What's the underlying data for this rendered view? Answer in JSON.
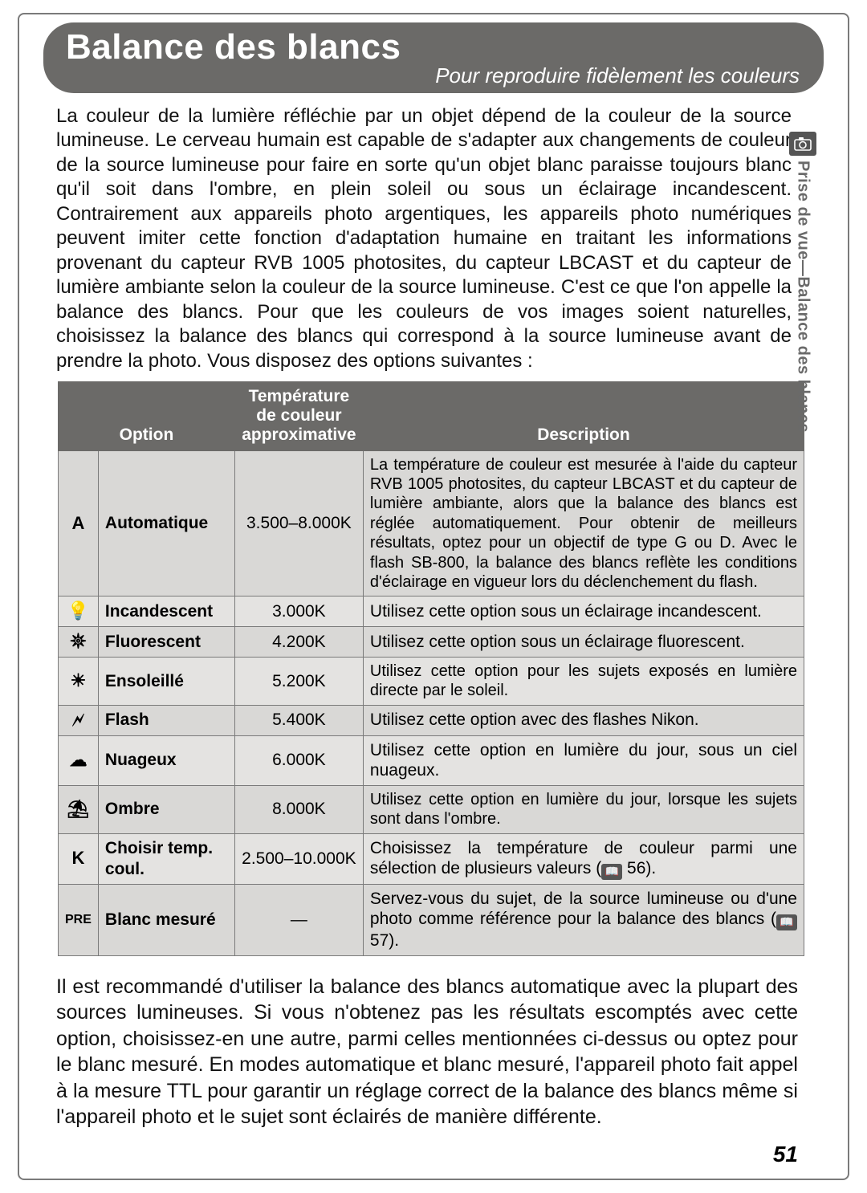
{
  "header": {
    "title": "Balance des blancs",
    "subtitle": "Pour reproduire fidèlement les couleurs"
  },
  "sidebar": {
    "icon_glyph": "📷",
    "label": "Prise de vue—Balance des blancs"
  },
  "intro": "La couleur de la lumière réfléchie par un objet dépend de la couleur de la source lumineuse. Le cerveau humain est capable de s'adapter aux changements de couleur de la source lumineuse pour faire en sorte qu'un objet blanc paraisse toujours blanc qu'il soit dans l'ombre, en plein soleil ou sous un éclairage incandescent. Contrairement aux appareils photo argentiques, les appareils photo numériques peuvent imiter cette fonction d'adaptation humaine en traitant les informations provenant du capteur RVB 1005 photosites, du capteur LBCAST et du capteur de lumière ambiante selon la couleur de la source lumineuse. C'est ce que l'on appelle la balance des blancs. Pour que les couleurs de vos images soient naturelles, choisissez la balance des blancs qui correspond à la source lumineuse avant de prendre la photo. Vous disposez des options suivantes :",
  "table": {
    "headers": {
      "option": "Option",
      "temp": "Température de couleur approximative",
      "desc": "Description"
    },
    "rows": [
      {
        "icon": "A",
        "label": "Automatique",
        "temp": "3.500–8.000K",
        "desc": "La température de couleur est mesurée à l'aide du capteur RVB 1005 photosites, du capteur LBCAST et du capteur de lumière ambiante, alors que la balance des blancs est réglée automatiquement. Pour obtenir de meilleurs résultats, optez pour un objectif de type G ou D. Avec le flash SB-800, la balance des blancs reflète les conditions d'éclairage en vigueur lors du déclenchement du flash.",
        "small": true
      },
      {
        "icon": "💡",
        "label": "Incandescent",
        "temp": "3.000K",
        "desc": "Utilisez cette option sous un éclairage incandescent."
      },
      {
        "icon": "𖤓",
        "label": "Fluorescent",
        "temp": "4.200K",
        "desc": "Utilisez cette option sous un éclairage fluorescent."
      },
      {
        "icon": "☀",
        "label": "Ensoleillé",
        "temp": "5.200K",
        "desc": "Utilisez cette option pour les sujets exposés en lumière directe par le soleil.",
        "small": true
      },
      {
        "icon": "🗲",
        "label": "Flash",
        "temp": "5.400K",
        "desc": "Utilisez cette option avec des flashes Nikon."
      },
      {
        "icon": "☁",
        "label": "Nuageux",
        "temp": "6.000K",
        "desc": "Utilisez cette option en lumière du jour, sous un ciel nuageux."
      },
      {
        "icon": "⛱",
        "label": "Ombre",
        "temp": "8.000K",
        "desc": "Utilisez cette option en lumière du jour, lorsque les sujets sont dans l'ombre.",
        "small": true
      },
      {
        "icon": "K",
        "label": "Choisir temp. coul.",
        "temp": "2.500–10.000K",
        "desc": "Choisissez la température de couleur parmi une sélection de plusieurs valeurs (",
        "ref": "56",
        "desc_after": ")."
      },
      {
        "icon": "PRE",
        "label": "Blanc mesuré",
        "temp": "—",
        "desc": "Servez-vous du sujet, de la source lumineuse ou d'une photo comme référence pour la balance des blancs (",
        "ref": "57",
        "desc_after": ")."
      }
    ]
  },
  "outro": "Il est recommandé d'utiliser la balance des blancs automatique avec la plupart des sources lumineuses. Si vous n'obtenez pas les résultats escomptés avec cette option, choisissez-en une autre, parmi celles mentionnées ci-dessus ou optez pour le blanc mesuré. En modes automatique et blanc mesuré, l'appareil photo fait appel à la mesure TTL pour garantir un réglage correct de la balance des blancs même si l'appareil photo et le sujet sont éclairés de manière différente.",
  "page_number": "51",
  "colors": {
    "header_bg": "#6b6a68",
    "border": "#7a7a7a",
    "row_a": "#d9d8d6",
    "row_b": "#e4e3e1",
    "side_text": "#6a6a6a"
  },
  "fonts": {
    "title_size_pt": 33,
    "body_size_pt": 18,
    "table_size_pt": 16
  }
}
